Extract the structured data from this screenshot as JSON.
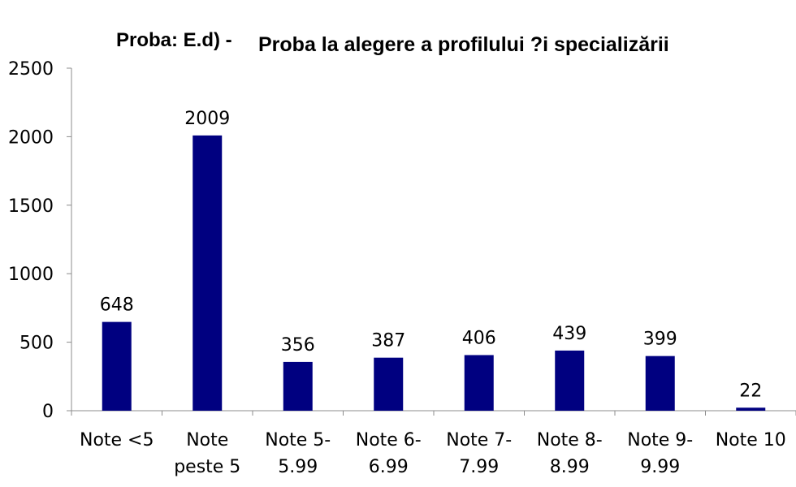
{
  "chart_data": {
    "type": "bar",
    "title_part1": "Proba: E.d) -",
    "title_part2": "Proba la alegere a profilului ?i specializării",
    "categories": [
      [
        "Note <5"
      ],
      [
        "Note",
        "peste 5"
      ],
      [
        "Note 5-",
        "5.99"
      ],
      [
        "Note 6-",
        "6.99"
      ],
      [
        "Note 7-",
        "7.99"
      ],
      [
        "Note 8-",
        "8.99"
      ],
      [
        "Note 9-",
        "9.99"
      ],
      [
        "Note 10"
      ]
    ],
    "values": [
      648,
      2009,
      356,
      387,
      406,
      439,
      399,
      22
    ],
    "data_labels": [
      "648",
      "2009",
      "356",
      "387",
      "406",
      "439",
      "399",
      "22"
    ],
    "ylim": [
      0,
      2500
    ],
    "yticks": [
      0,
      500,
      1000,
      1500,
      2000,
      2500
    ],
    "ytick_labels": [
      "0",
      "500",
      "1000",
      "1500",
      "2000",
      "2500"
    ],
    "xlabel": "",
    "ylabel": "",
    "grid": false,
    "legend": "none",
    "bar_color": "#000080",
    "axis_color": "#8c8c8c"
  }
}
